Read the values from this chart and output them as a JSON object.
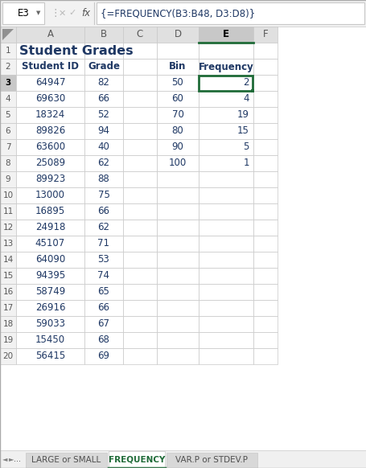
{
  "title": "Student Grades",
  "formula_bar_cell": "E3",
  "formula_bar_text": "{=FREQUENCY(B3:B48, D3:D8)}",
  "col_names": [
    "A",
    "B",
    "C",
    "D",
    "E",
    "F"
  ],
  "student_ids": [
    64947,
    69630,
    18324,
    89826,
    63600,
    25089,
    89923,
    13000,
    16895,
    24918,
    45107,
    64090,
    94395,
    58749,
    26916,
    59033,
    15450,
    56415
  ],
  "grades": [
    82,
    66,
    52,
    94,
    40,
    62,
    88,
    75,
    66,
    62,
    71,
    53,
    74,
    65,
    66,
    67,
    68,
    69
  ],
  "bins": [
    50,
    60,
    70,
    80,
    90,
    100
  ],
  "frequencies": [
    2,
    4,
    19,
    15,
    5,
    1
  ],
  "sheet_tab_active": "FREQUENCY",
  "sheet_tabs": [
    "LARGE or SMALL",
    "FREQUENCY",
    "VAR.P or STDEV.P"
  ],
  "text_color": "#1F3864",
  "grid_color": "#C8C8C8",
  "col_hdr_bg": "#E0E0E0",
  "col_hdr_selected_bg": "#C8C8C8",
  "col_hdr_selected_bottom": "#1F6B38",
  "row_hdr_bg": "#F2F2F2",
  "row_hdr_selected_bg": "#C8C8C8",
  "cell_bg": "#FFFFFF",
  "formula_bar_bg": "#F2F2F2",
  "formula_input_bg": "#FFFFFF",
  "sel_border": "#1F6B38",
  "tab_active_color": "#1F6B38",
  "tab_inactive_bg": "#D8D8D8",
  "tab_bar_bg": "#F0F0F0"
}
